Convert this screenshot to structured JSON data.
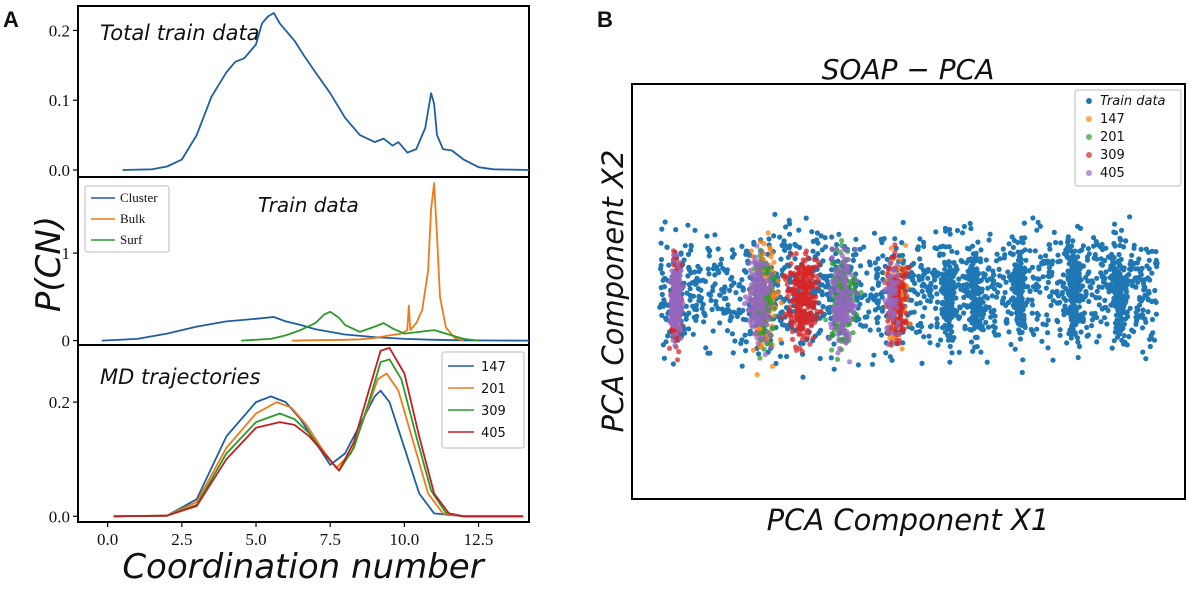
{
  "panel_a_label": "A",
  "panel_b_label": "B",
  "colors": {
    "blue": "#1f5fa0",
    "orange": "#ef7a1a",
    "green": "#2a9a2a",
    "red": "#c21e24",
    "purple": "#9467bd",
    "scatter_blue": "#1f77b4",
    "scatter_orange": "#ff7f0e",
    "scatter_green": "#2ca02c",
    "scatter_red": "#d62728"
  },
  "panel_a": {
    "ylabel": "P(CN)",
    "xlabel": "Coordination number",
    "x_ticks": [
      "0.0",
      "2.5",
      "5.0",
      "7.5",
      "10.0",
      "12.5"
    ]
  },
  "chart_data": [
    {
      "type": "line",
      "title": "Total train data",
      "xlabel": "Coordination number",
      "ylabel": "P(CN)",
      "xlim": [
        -1,
        14.2
      ],
      "ylim": [
        -0.01,
        0.235
      ],
      "y_ticks": [
        "0.0",
        "0.1",
        "0.2"
      ],
      "series": [
        {
          "name": "Total train data",
          "color": "#1f5fa0",
          "x": [
            0.5,
            1.5,
            2.0,
            2.5,
            3.0,
            3.5,
            4.0,
            4.3,
            4.6,
            5.0,
            5.2,
            5.4,
            5.6,
            5.8,
            6.0,
            6.3,
            6.6,
            7.0,
            7.5,
            8.0,
            8.5,
            9.0,
            9.3,
            9.6,
            9.8,
            10.1,
            10.4,
            10.7,
            10.9,
            11.0,
            11.1,
            11.3,
            11.6,
            12.0,
            12.5,
            13.0,
            14.2
          ],
          "y": [
            0.0,
            0.001,
            0.005,
            0.015,
            0.05,
            0.105,
            0.14,
            0.155,
            0.16,
            0.18,
            0.21,
            0.22,
            0.225,
            0.21,
            0.2,
            0.185,
            0.165,
            0.14,
            0.11,
            0.075,
            0.05,
            0.04,
            0.045,
            0.035,
            0.04,
            0.025,
            0.03,
            0.06,
            0.11,
            0.095,
            0.05,
            0.03,
            0.028,
            0.015,
            0.004,
            0.001,
            0.0
          ]
        }
      ]
    },
    {
      "type": "line",
      "title": "Train data",
      "xlabel": "Coordination number",
      "ylabel": "P(CN)",
      "xlim": [
        -1,
        14.2
      ],
      "ylim": [
        -0.05,
        1.87
      ],
      "y_ticks": [
        "0",
        "1"
      ],
      "legend": [
        "Cluster",
        "Bulk",
        "Surf"
      ],
      "series": [
        {
          "name": "Cluster",
          "color": "#1f5fa0",
          "x": [
            -0.2,
            1.0,
            2.0,
            3.0,
            4.0,
            5.0,
            5.6,
            6.0,
            6.5,
            7.0,
            8.0,
            9.0,
            10.0,
            11.0,
            12.0,
            13.0,
            14.2
          ],
          "y": [
            0.0,
            0.02,
            0.08,
            0.16,
            0.22,
            0.25,
            0.27,
            0.22,
            0.18,
            0.13,
            0.07,
            0.04,
            0.02,
            0.01,
            0.004,
            0.001,
            0.0
          ]
        },
        {
          "name": "Bulk",
          "color": "#ef7a1a",
          "x": [
            6.2,
            7.0,
            8.0,
            8.5,
            9.0,
            9.5,
            9.9,
            10.1,
            10.15,
            10.2,
            10.4,
            10.6,
            10.8,
            10.9,
            11.0,
            11.1,
            11.2,
            11.4,
            11.7,
            12.0
          ],
          "y": [
            0.0,
            0.005,
            0.01,
            0.015,
            0.03,
            0.06,
            0.08,
            0.12,
            0.4,
            0.12,
            0.2,
            0.35,
            0.8,
            1.5,
            1.8,
            1.2,
            0.5,
            0.15,
            0.03,
            0.0
          ]
        },
        {
          "name": "Surf",
          "color": "#2a9a2a",
          "x": [
            4.5,
            5.5,
            6.0,
            6.5,
            7.0,
            7.3,
            7.5,
            7.8,
            8.0,
            8.5,
            9.0,
            9.3,
            9.6,
            10.0,
            10.5,
            11.0,
            11.5,
            12.0,
            12.5
          ],
          "y": [
            0.0,
            0.02,
            0.06,
            0.12,
            0.2,
            0.3,
            0.33,
            0.26,
            0.18,
            0.1,
            0.16,
            0.2,
            0.14,
            0.08,
            0.1,
            0.12,
            0.07,
            0.02,
            0.0
          ]
        }
      ]
    },
    {
      "type": "line",
      "title": "MD trajectories",
      "xlabel": "Coordination number",
      "ylabel": "P(CN)",
      "xlim": [
        -1,
        14.2
      ],
      "ylim": [
        -0.01,
        0.3
      ],
      "y_ticks": [
        "0.0",
        "0.2"
      ],
      "legend": [
        "147",
        "201",
        "309",
        "405"
      ],
      "series": [
        {
          "name": "147",
          "color": "#1f5fa0",
          "x": [
            0.2,
            2.0,
            3.0,
            4.0,
            5.0,
            5.5,
            6.0,
            6.5,
            7.0,
            7.5,
            8.0,
            8.5,
            9.0,
            9.2,
            9.5,
            10.0,
            10.5,
            11.0,
            12.0,
            14.0
          ],
          "y": [
            0.0,
            0.001,
            0.03,
            0.14,
            0.2,
            0.21,
            0.2,
            0.17,
            0.13,
            0.09,
            0.11,
            0.16,
            0.21,
            0.22,
            0.2,
            0.12,
            0.04,
            0.005,
            0.0,
            0.0
          ]
        },
        {
          "name": "201",
          "color": "#ef7a1a",
          "x": [
            0.2,
            2.0,
            3.0,
            4.0,
            5.0,
            5.7,
            6.2,
            6.7,
            7.2,
            7.7,
            8.2,
            8.7,
            9.1,
            9.4,
            9.8,
            10.3,
            10.8,
            11.3,
            12.0,
            14.0
          ],
          "y": [
            0.0,
            0.001,
            0.025,
            0.12,
            0.18,
            0.2,
            0.19,
            0.16,
            0.12,
            0.085,
            0.11,
            0.18,
            0.24,
            0.25,
            0.22,
            0.13,
            0.04,
            0.005,
            0.0,
            0.0
          ]
        },
        {
          "name": "309",
          "color": "#2a9a2a",
          "x": [
            0.2,
            2.0,
            3.0,
            4.0,
            5.0,
            5.8,
            6.3,
            6.8,
            7.3,
            7.8,
            8.3,
            8.8,
            9.2,
            9.5,
            9.9,
            10.4,
            10.9,
            11.4,
            12.0,
            14.0
          ],
          "y": [
            0.0,
            0.001,
            0.02,
            0.11,
            0.165,
            0.18,
            0.17,
            0.145,
            0.11,
            0.08,
            0.12,
            0.2,
            0.27,
            0.275,
            0.24,
            0.14,
            0.045,
            0.006,
            0.0,
            0.0
          ]
        },
        {
          "name": "405",
          "color": "#c21e24",
          "x": [
            0.2,
            2.0,
            3.0,
            4.0,
            5.0,
            5.8,
            6.3,
            6.8,
            7.3,
            7.8,
            8.3,
            8.8,
            9.2,
            9.5,
            10.0,
            10.5,
            11.0,
            11.5,
            12.0,
            14.0
          ],
          "y": [
            0.0,
            0.001,
            0.018,
            0.1,
            0.155,
            0.165,
            0.16,
            0.14,
            0.11,
            0.08,
            0.13,
            0.22,
            0.29,
            0.295,
            0.25,
            0.14,
            0.04,
            0.005,
            0.0,
            0.0
          ]
        }
      ]
    },
    {
      "type": "scatter",
      "title": "SOAP − PCA",
      "xlabel": "PCA Component X1",
      "ylabel": "PCA Component X2",
      "legend": [
        "Train data",
        "147",
        "201",
        "309",
        "405"
      ],
      "note": "Point cloud in arbitrary PCA units, approximately x in [0,1], y in [0,1]; Train data broadly spread, MD points concentrated in vertical bands near x = 0.05, 0.25, 0.35, 0.45, 0.55."
    }
  ]
}
